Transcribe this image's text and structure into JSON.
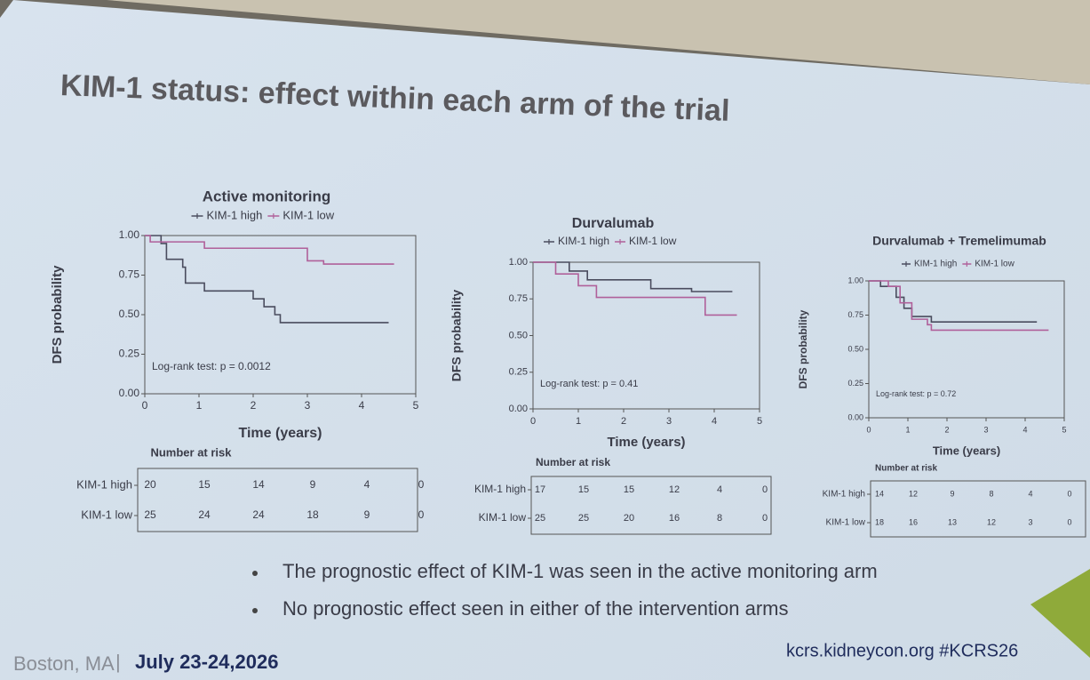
{
  "title": "KIM-1 status: effect within each arm of the trial",
  "chart_data": [
    {
      "type": "line",
      "step": "post",
      "title": "Active monitoring",
      "xlabel": "Time (years)",
      "ylabel": "DFS probability",
      "xlim": [
        0,
        5
      ],
      "ylim": [
        0,
        1
      ],
      "xticks": [
        0,
        1,
        2,
        3,
        4,
        5
      ],
      "yticks": [
        {
          "value": 0,
          "label": "0.00"
        },
        {
          "value": 0.25,
          "label": "0.25"
        },
        {
          "value": 0.5,
          "label": "0.50"
        },
        {
          "value": 0.75,
          "label": "0.75"
        },
        {
          "value": 1,
          "label": "1.00"
        }
      ],
      "annotation": "Log-rank test: p = 0.0012",
      "series": [
        {
          "name": "KIM-1 high",
          "color": "#4a4c5e",
          "x": [
            0,
            0.3,
            0.4,
            0.7,
            0.75,
            1.1,
            2.0,
            2.2,
            2.4,
            2.5,
            4.5
          ],
          "values": [
            1.0,
            0.95,
            0.85,
            0.8,
            0.7,
            0.65,
            0.6,
            0.55,
            0.5,
            0.45,
            0.45
          ]
        },
        {
          "name": "KIM-1 low",
          "color": "#b0609a",
          "x": [
            0,
            0.1,
            1.1,
            3.0,
            3.3,
            4.6
          ],
          "values": [
            1.0,
            0.96,
            0.92,
            0.84,
            0.82,
            0.82
          ]
        }
      ],
      "risk_table": {
        "title": "Number at risk",
        "rows": [
          [
            20,
            15,
            14,
            9,
            4,
            0
          ],
          [
            25,
            24,
            24,
            18,
            9,
            0
          ]
        ]
      }
    },
    {
      "type": "line",
      "step": "post",
      "title": "Durvalumab",
      "xlabel": "Time (years)",
      "ylabel": "DFS probability",
      "xlim": [
        0,
        5
      ],
      "ylim": [
        0,
        1
      ],
      "xticks": [
        0,
        1,
        2,
        3,
        4,
        5
      ],
      "yticks": [
        {
          "value": 0,
          "label": "0.00"
        },
        {
          "value": 0.25,
          "label": "0.25"
        },
        {
          "value": 0.5,
          "label": "0.50"
        },
        {
          "value": 0.75,
          "label": "0.75"
        },
        {
          "value": 1,
          "label": "1.00"
        }
      ],
      "annotation": "Log-rank test: p = 0.41",
      "series": [
        {
          "name": "KIM-1 high",
          "color": "#4a4c5e",
          "x": [
            0,
            0.8,
            1.2,
            2.6,
            3.5,
            4.4
          ],
          "values": [
            1.0,
            0.94,
            0.88,
            0.82,
            0.8,
            0.8
          ]
        },
        {
          "name": "KIM-1 low",
          "color": "#b0609a",
          "x": [
            0,
            0.5,
            1.0,
            1.4,
            3.8,
            4.5
          ],
          "values": [
            1.0,
            0.92,
            0.84,
            0.76,
            0.64,
            0.64
          ]
        }
      ],
      "risk_table": {
        "title": "Number at risk",
        "rows": [
          [
            17,
            15,
            15,
            12,
            4,
            0
          ],
          [
            25,
            25,
            20,
            16,
            8,
            0
          ]
        ]
      }
    },
    {
      "type": "line",
      "step": "post",
      "title": "Durvalumab + Tremelimumab",
      "xlabel": "Time (years)",
      "ylabel": "DFS probability",
      "xlim": [
        0,
        5
      ],
      "ylim": [
        0,
        1
      ],
      "xticks": [
        0,
        1,
        2,
        3,
        4,
        5
      ],
      "yticks": [
        {
          "value": 0,
          "label": "0.00"
        },
        {
          "value": 0.25,
          "label": "0.25"
        },
        {
          "value": 0.5,
          "label": "0.50"
        },
        {
          "value": 0.75,
          "label": "0.75"
        },
        {
          "value": 1,
          "label": "1.00"
        }
      ],
      "annotation": "Log-rank test: p = 0.72",
      "series": [
        {
          "name": "KIM-1 high",
          "color": "#4a4c5e",
          "x": [
            0,
            0.3,
            0.7,
            0.9,
            1.1,
            1.6,
            4.3
          ],
          "values": [
            1.0,
            0.96,
            0.88,
            0.8,
            0.74,
            0.7,
            0.7
          ]
        },
        {
          "name": "KIM-1 low",
          "color": "#b0609a",
          "x": [
            0,
            0.5,
            0.8,
            1.1,
            1.5,
            1.6,
            4.6
          ],
          "values": [
            1.0,
            0.96,
            0.84,
            0.72,
            0.68,
            0.64,
            0.64
          ]
        }
      ],
      "risk_table": {
        "title": "Number at risk",
        "rows": [
          [
            14,
            12,
            9,
            8,
            4,
            0
          ],
          [
            18,
            16,
            13,
            12,
            3,
            0
          ]
        ]
      }
    }
  ],
  "bullets": [
    "The prognostic effect of KIM-1 was seen in the active monitoring arm",
    "No prognostic effect seen in either of the intervention arms"
  ],
  "footer": {
    "location": "Boston, MA",
    "separator": "|",
    "dates": "July 23-24,2026",
    "url": "kcrs.kidneycon.org #KCRS26"
  }
}
